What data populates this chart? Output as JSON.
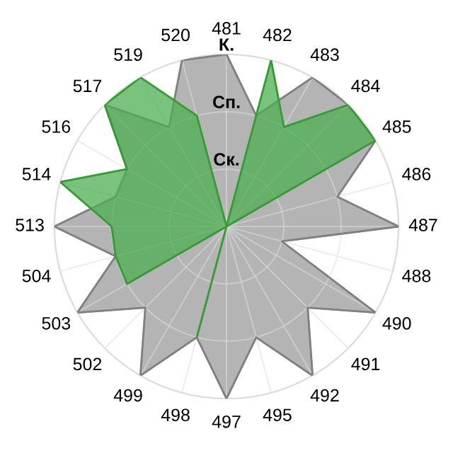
{
  "chart_data": {
    "type": "radar",
    "categories": [
      "481",
      "482",
      "483",
      "484",
      "485",
      "486",
      "487",
      "488",
      "490",
      "491",
      "492",
      "495",
      "497",
      "498",
      "499",
      "502",
      "503",
      "504",
      "513",
      "514",
      "516",
      "517",
      "519",
      "520"
    ],
    "series": [
      {
        "color": "#b4b4b4",
        "values": [
          3,
          2,
          3,
          3,
          3,
          2,
          3,
          1,
          3,
          2,
          3,
          2,
          3,
          2,
          3,
          2,
          3,
          2,
          3,
          2,
          2,
          3,
          2,
          3
        ]
      },
      {
        "color": "#4caf50",
        "values": [
          0,
          3,
          2,
          3,
          3,
          0,
          0,
          0,
          0,
          0,
          0,
          0,
          0,
          2,
          0,
          0,
          2,
          2,
          2,
          3,
          2,
          3,
          3,
          2
        ]
      }
    ],
    "ylim": [
      0,
      3
    ],
    "yticks": [
      {
        "value": 1,
        "label": "Ск."
      },
      {
        "value": 2,
        "label": "Сп."
      },
      {
        "value": 3,
        "label": "К."
      }
    ],
    "grid": true,
    "legend": false
  }
}
